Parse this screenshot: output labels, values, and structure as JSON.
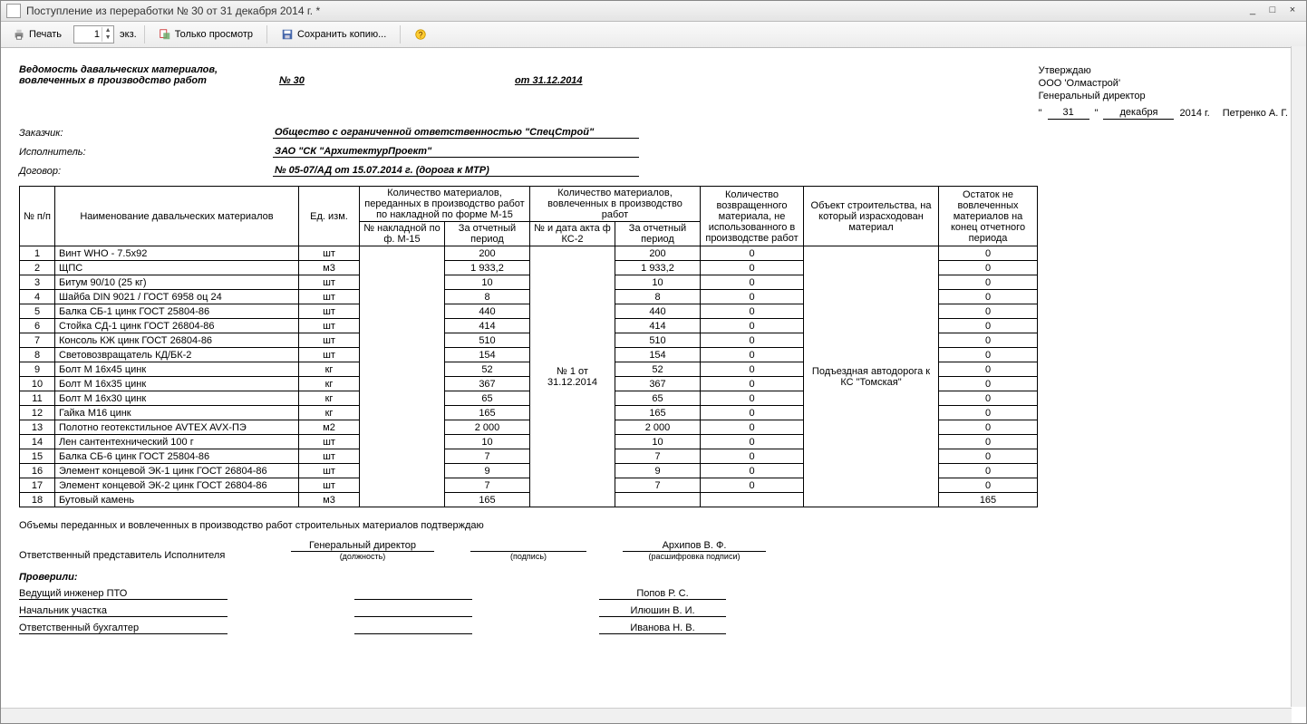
{
  "window": {
    "title": "Поступление из переработки № 30 от 31 декабря 2014 г. *"
  },
  "toolbar": {
    "print": "Печать",
    "copies_value": "1",
    "copies_suffix": "экз.",
    "preview": "Только просмотр",
    "save_copy": "Сохранить копию..."
  },
  "header": {
    "title_l1": "Ведомость давальческих материалов,",
    "title_l2": "вовлеченных в производство работ",
    "number_label": "№ 30",
    "date_label": "от 31.12.2014",
    "customer_label": "Заказчик:",
    "customer": "Общество с ограниченной ответственностью \"СпецСтрой\"",
    "contractor_label": "Исполнитель:",
    "contractor": "ЗАО \"СК \"АрхитектурПроект\"",
    "contract_label": "Договор:",
    "contract": "№ 05-07/АД от 15.07.2014 г. (дорога к МТР)"
  },
  "approve": {
    "l1": "Утверждаю",
    "l2": "ООО 'Олмастрой'",
    "l3": "Генеральный директор",
    "day": "31",
    "month": "декабря",
    "year": "2014 г.",
    "name": "Петренко А. Г."
  },
  "columns": {
    "no": "№ п/п",
    "name": "Наименование давальческих материалов",
    "unit": "Ед. изм.",
    "group_transferred": "Количество материалов, переданных в производство работ по накладной по форме М-15",
    "invoice_no": "№ накладной по ф. М-15",
    "transferred_period": "За отчетный период",
    "group_involved": "Количество материалов, вовлеченных в производство работ",
    "act_no": "№ и дата акта ф КС-2",
    "involved_period": "За отчетный период",
    "returned": "Количество возвращенного материала, не использованного в производстве работ",
    "object": "Объект строительства, на который израсходован материал",
    "remainder": "Остаток не вовлеченных материалов на конец отчетного периода"
  },
  "act_value": "№ 1 от 31.12.2014",
  "object_value": "Подъездная автодорога к КС \"Томская\"",
  "rows": [
    {
      "n": "1",
      "name": "Винт WHO - 7.5x92",
      "u": "шт",
      "q": "200",
      "inv": "200",
      "ret": "0",
      "rem": "0"
    },
    {
      "n": "2",
      "name": "ЩПС",
      "u": "м3",
      "q": "1 933,2",
      "inv": "1 933,2",
      "ret": "0",
      "rem": "0"
    },
    {
      "n": "3",
      "name": "Битум 90/10 (25 кг)",
      "u": "шт",
      "q": "10",
      "inv": "10",
      "ret": "0",
      "rem": "0"
    },
    {
      "n": "4",
      "name": "Шайба DIN 9021 / ГОСТ 6958 оц 24",
      "u": "шт",
      "q": "8",
      "inv": "8",
      "ret": "0",
      "rem": "0"
    },
    {
      "n": "5",
      "name": "Балка СБ-1 цинк ГОСТ 25804-86",
      "u": "шт",
      "q": "440",
      "inv": "440",
      "ret": "0",
      "rem": "0"
    },
    {
      "n": "6",
      "name": "Стойка СД-1 цинк ГОСТ 26804-86",
      "u": "шт",
      "q": "414",
      "inv": "414",
      "ret": "0",
      "rem": "0"
    },
    {
      "n": "7",
      "name": "Консоль КЖ цинк ГОСТ 26804-86",
      "u": "шт",
      "q": "510",
      "inv": "510",
      "ret": "0",
      "rem": "0"
    },
    {
      "n": "8",
      "name": "Световозвращатель КД/БК-2",
      "u": "шт",
      "q": "154",
      "inv": "154",
      "ret": "0",
      "rem": "0"
    },
    {
      "n": "9",
      "name": "Болт М 16х45 цинк",
      "u": "кг",
      "q": "52",
      "inv": "52",
      "ret": "0",
      "rem": "0"
    },
    {
      "n": "10",
      "name": "Болт М 16х35 цинк",
      "u": "кг",
      "q": "367",
      "inv": "367",
      "ret": "0",
      "rem": "0"
    },
    {
      "n": "11",
      "name": "Болт М 16х30 цинк",
      "u": "кг",
      "q": "65",
      "inv": "65",
      "ret": "0",
      "rem": "0"
    },
    {
      "n": "12",
      "name": "Гайка М16 цинк",
      "u": "кг",
      "q": "165",
      "inv": "165",
      "ret": "0",
      "rem": "0"
    },
    {
      "n": "13",
      "name": "Полотно геотекстильное AVTEX AVX-ПЭ",
      "u": "м2",
      "q": "2 000",
      "inv": "2 000",
      "ret": "0",
      "rem": "0"
    },
    {
      "n": "14",
      "name": "Лен сантентехнический 100 г",
      "u": "шт",
      "q": "10",
      "inv": "10",
      "ret": "0",
      "rem": "0"
    },
    {
      "n": "15",
      "name": "Балка СБ-6 цинк ГОСТ 25804-86",
      "u": "шт",
      "q": "7",
      "inv": "7",
      "ret": "0",
      "rem": "0"
    },
    {
      "n": "16",
      "name": "Элемент концевой ЭК-1 цинк ГОСТ 26804-86",
      "u": "шт",
      "q": "9",
      "inv": "9",
      "ret": "0",
      "rem": "0"
    },
    {
      "n": "17",
      "name": "Элемент концевой ЭК-2 цинк ГОСТ 26804-86",
      "u": "шт",
      "q": "7",
      "inv": "7",
      "ret": "0",
      "rem": "0"
    },
    {
      "n": "18",
      "name": "Бутовый камень",
      "u": "м3",
      "q": "165",
      "inv": "",
      "ret": "",
      "rem": "165"
    }
  ],
  "footer": {
    "confirm": "Объемы переданных и вовлеченных в производство работ строительных материалов подтверждаю",
    "rep_label": "Ответственный представитель Исполнителя",
    "position": "Генеральный директор",
    "position_cap": "(должность)",
    "sign_cap": "(подпись)",
    "name": "Архипов В. Ф.",
    "name_cap": "(расшифровка подписи)",
    "checked": "Проверили:",
    "checks": [
      {
        "role": "Ведущий инженер ПТО",
        "person": "Попов Р. С."
      },
      {
        "role": "Начальник участка",
        "person": "Илюшин В. И."
      },
      {
        "role": "Ответственный бухгалтер",
        "person": "Иванова Н. В."
      }
    ]
  },
  "col_widths": {
    "no": 30,
    "name": 260,
    "unit": 58,
    "invoice": 85,
    "period1": 85,
    "act": 85,
    "period2": 85,
    "returned": 105,
    "object": 140,
    "remainder": 100
  }
}
